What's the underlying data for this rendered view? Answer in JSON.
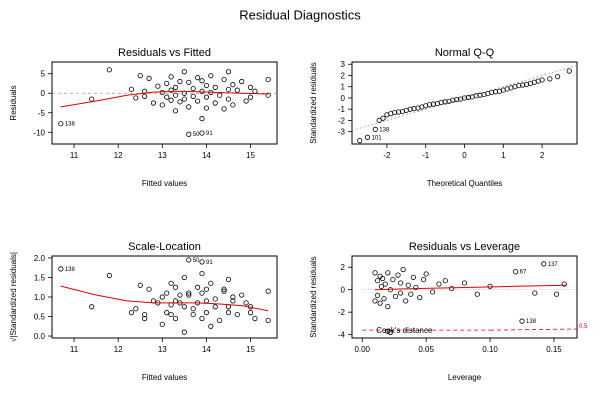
{
  "figure_title": "Residual Diagnostics",
  "chart_data": [
    {
      "type": "scatter",
      "title": "Residuals vs Fitted",
      "xlabel": "Fitted values",
      "ylabel": "Residuals",
      "xlim": [
        10.5,
        15.6
      ],
      "ylim": [
        -13,
        8
      ],
      "xticks": [
        11,
        12,
        13,
        14,
        15
      ],
      "yticks": [
        -10,
        -5,
        0,
        5
      ],
      "ref_line": {
        "y": 0
      },
      "smooth": {
        "x": [
          10.7,
          11.5,
          12.2,
          12.8,
          13.3,
          13.8,
          14.3,
          14.8,
          15.4
        ],
        "y": [
          -3.5,
          -2.0,
          -0.5,
          0.3,
          0.5,
          0.4,
          0.2,
          0.0,
          -0.2
        ]
      },
      "points": {
        "x": [
          10.7,
          11.4,
          11.8,
          12.3,
          12.4,
          12.5,
          12.6,
          12.6,
          12.7,
          12.8,
          12.9,
          13.0,
          13.0,
          13.1,
          13.1,
          13.2,
          13.2,
          13.2,
          13.3,
          13.3,
          13.3,
          13.4,
          13.4,
          13.5,
          13.5,
          13.5,
          13.6,
          13.6,
          13.7,
          13.7,
          13.8,
          13.8,
          13.9,
          13.9,
          13.9,
          14.0,
          14.0,
          14.0,
          14.1,
          14.1,
          14.2,
          14.2,
          14.3,
          14.4,
          14.4,
          14.5,
          14.5,
          14.5,
          14.6,
          14.6,
          14.7,
          14.8,
          14.9,
          15.0,
          15.0,
          15.1,
          15.4,
          15.4,
          13.6,
          13.9
        ],
        "y": [
          -7.8,
          -1.5,
          6.0,
          1.0,
          -1.2,
          4.5,
          0.5,
          -0.8,
          3.8,
          -2.5,
          1.8,
          0.2,
          -3.0,
          2.5,
          -1.0,
          4.2,
          0.8,
          -1.8,
          1.5,
          -0.5,
          -4.5,
          3.0,
          -2.2,
          5.5,
          0.0,
          -1.5,
          2.8,
          -3.5,
          1.2,
          -0.8,
          4.0,
          -2.0,
          3.2,
          0.5,
          -6.5,
          2.0,
          -1.0,
          -3.8,
          4.5,
          0.2,
          1.5,
          -2.5,
          -0.5,
          3.5,
          -4.0,
          5.5,
          1.0,
          -1.5,
          2.2,
          -3.0,
          0.8,
          3.0,
          -2.0,
          1.5,
          -1.0,
          0.5,
          3.5,
          -0.5,
          -10.5,
          -10.2
        ]
      },
      "annotations": [
        {
          "text": "138",
          "x": 10.7,
          "y": -7.8
        },
        {
          "text": "50",
          "x": 13.6,
          "y": -10.5
        },
        {
          "text": "91",
          "x": 13.9,
          "y": -10.2
        }
      ]
    },
    {
      "type": "scatter",
      "title": "Normal Q-Q",
      "xlabel": "Theoretical Quantiles",
      "ylabel": "Standardized residuals",
      "xlim": [
        -2.9,
        2.9
      ],
      "ylim": [
        -4.1,
        3.2
      ],
      "xticks": [
        -2,
        -1,
        0,
        1,
        2
      ],
      "yticks": [
        -3,
        -2,
        -1,
        0,
        1,
        2,
        3
      ],
      "ref_line": {
        "x": [
          -2.9,
          2.9
        ],
        "y": [
          -2.9,
          2.9
        ],
        "dashed": true
      },
      "points": {
        "x": [
          -2.7,
          -2.5,
          -2.3,
          -2.2,
          -2.1,
          -2.0,
          -1.9,
          -1.8,
          -1.7,
          -1.6,
          -1.5,
          -1.4,
          -1.3,
          -1.2,
          -1.1,
          -1.0,
          -0.9,
          -0.8,
          -0.7,
          -0.6,
          -0.5,
          -0.4,
          -0.3,
          -0.2,
          -0.1,
          0.0,
          0.1,
          0.2,
          0.3,
          0.4,
          0.5,
          0.6,
          0.7,
          0.8,
          0.9,
          1.0,
          1.1,
          1.2,
          1.3,
          1.4,
          1.5,
          1.6,
          1.7,
          1.8,
          1.9,
          2.0,
          2.2,
          2.4,
          2.7
        ],
        "y": [
          -3.8,
          -3.5,
          -2.8,
          -2.0,
          -1.8,
          -1.5,
          -1.4,
          -1.3,
          -1.25,
          -1.2,
          -1.1,
          -1.0,
          -0.95,
          -0.9,
          -0.8,
          -0.7,
          -0.6,
          -0.55,
          -0.5,
          -0.4,
          -0.35,
          -0.3,
          -0.2,
          -0.15,
          -0.1,
          0.0,
          0.05,
          0.1,
          0.2,
          0.25,
          0.3,
          0.4,
          0.5,
          0.55,
          0.6,
          0.7,
          0.8,
          0.9,
          1.0,
          1.1,
          1.15,
          1.2,
          1.3,
          1.4,
          1.5,
          1.6,
          1.7,
          1.9,
          2.4
        ]
      },
      "annotations": [
        {
          "text": "138",
          "x": -2.3,
          "y": -2.8
        },
        {
          "text": "101",
          "x": -2.5,
          "y": -3.5
        }
      ]
    },
    {
      "type": "scatter",
      "title": "Scale-Location",
      "xlabel": "Fitted values",
      "ylabel": "√|Standardized residuals|",
      "xlim": [
        10.5,
        15.6
      ],
      "ylim": [
        -0.05,
        2.05
      ],
      "xticks": [
        11,
        12,
        13,
        14,
        15
      ],
      "yticks": [
        0.0,
        0.5,
        1.0,
        1.5,
        2.0
      ],
      "smooth": {
        "x": [
          10.7,
          11.5,
          12.2,
          12.8,
          13.3,
          13.8,
          14.3,
          14.8,
          15.4
        ],
        "y": [
          1.28,
          1.05,
          0.9,
          0.85,
          0.85,
          0.85,
          0.82,
          0.78,
          0.65
        ]
      },
      "points": {
        "x": [
          10.7,
          11.4,
          11.8,
          12.3,
          12.4,
          12.5,
          12.6,
          12.6,
          12.7,
          12.8,
          12.9,
          13.0,
          13.0,
          13.1,
          13.1,
          13.2,
          13.2,
          13.2,
          13.3,
          13.3,
          13.3,
          13.4,
          13.4,
          13.5,
          13.5,
          13.5,
          13.6,
          13.6,
          13.7,
          13.7,
          13.8,
          13.8,
          13.9,
          13.9,
          13.9,
          14.0,
          14.0,
          14.0,
          14.1,
          14.1,
          14.2,
          14.2,
          14.3,
          14.4,
          14.4,
          14.5,
          14.5,
          14.5,
          14.6,
          14.6,
          14.7,
          14.8,
          14.9,
          15.0,
          15.0,
          15.1,
          15.4,
          15.4,
          13.6,
          13.9
        ],
        "y": [
          1.72,
          0.75,
          1.55,
          0.6,
          0.7,
          1.3,
          0.45,
          0.55,
          1.2,
          0.9,
          0.85,
          0.3,
          1.0,
          1.1,
          0.6,
          1.35,
          0.55,
          0.8,
          0.9,
          0.45,
          1.25,
          1.05,
          0.85,
          1.5,
          0.1,
          0.75,
          1.05,
          1.1,
          0.7,
          0.55,
          1.25,
          0.85,
          1.1,
          0.45,
          1.6,
          0.9,
          0.6,
          1.2,
          1.35,
          0.25,
          0.75,
          0.95,
          0.4,
          1.15,
          1.2,
          1.45,
          0.6,
          0.75,
          0.9,
          1.0,
          0.55,
          1.05,
          0.85,
          0.75,
          0.6,
          0.45,
          1.15,
          0.4,
          1.95,
          1.9
        ]
      },
      "annotations": [
        {
          "text": "138",
          "x": 10.7,
          "y": 1.72
        },
        {
          "text": "50",
          "x": 13.6,
          "y": 1.95
        },
        {
          "text": "91",
          "x": 13.9,
          "y": 1.9
        }
      ]
    },
    {
      "type": "scatter",
      "title": "Residuals vs Leverage",
      "xlabel": "Leverage",
      "ylabel": "Standardized residuals",
      "xlim": [
        -0.008,
        0.168
      ],
      "ylim": [
        -4.3,
        3.0
      ],
      "xticks": [
        0.0,
        0.05,
        0.1,
        0.15
      ],
      "xtick_labels": [
        "0.00",
        "0.05",
        "0.10",
        "0.15"
      ],
      "yticks": [
        -4,
        -2,
        0,
        2
      ],
      "ref_line": {
        "y": 0,
        "x0": 0,
        "dotted": true
      },
      "smooth": {
        "x": [
          0.01,
          0.04,
          0.08,
          0.12,
          0.16
        ],
        "y": [
          0.0,
          0.1,
          0.2,
          0.3,
          0.4
        ]
      },
      "cooks": {
        "label": "Cook's distance",
        "level": "0.5",
        "x": [
          0.0,
          0.1,
          0.168
        ],
        "y": [
          -3.6,
          -3.6,
          -3.5
        ]
      },
      "points": {
        "x": [
          0.01,
          0.01,
          0.012,
          0.012,
          0.014,
          0.014,
          0.015,
          0.016,
          0.017,
          0.018,
          0.02,
          0.02,
          0.022,
          0.024,
          0.026,
          0.028,
          0.03,
          0.03,
          0.032,
          0.034,
          0.036,
          0.038,
          0.04,
          0.042,
          0.045,
          0.048,
          0.05,
          0.055,
          0.06,
          0.065,
          0.07,
          0.08,
          0.09,
          0.1,
          0.12,
          0.135,
          0.142,
          0.152,
          0.158,
          0.125,
          0.02,
          0.022
        ],
        "y": [
          1.5,
          -1.0,
          0.8,
          -0.5,
          1.2,
          -1.2,
          0.3,
          1.0,
          -0.8,
          0.5,
          1.5,
          -1.5,
          0.0,
          0.9,
          -0.6,
          1.3,
          -0.3,
          0.6,
          1.8,
          -1.0,
          0.4,
          -0.4,
          1.1,
          0.2,
          -0.7,
          0.9,
          1.4,
          -0.2,
          0.5,
          0.8,
          0.1,
          0.6,
          -0.4,
          0.3,
          1.6,
          -0.3,
          2.3,
          -0.4,
          0.5,
          -2.8,
          -3.7,
          -3.8
        ]
      },
      "annotations": [
        {
          "text": "67",
          "x": 0.12,
          "y": 1.6
        },
        {
          "text": "137",
          "x": 0.142,
          "y": 2.3
        },
        {
          "text": "138",
          "x": 0.125,
          "y": -2.8
        }
      ]
    }
  ]
}
